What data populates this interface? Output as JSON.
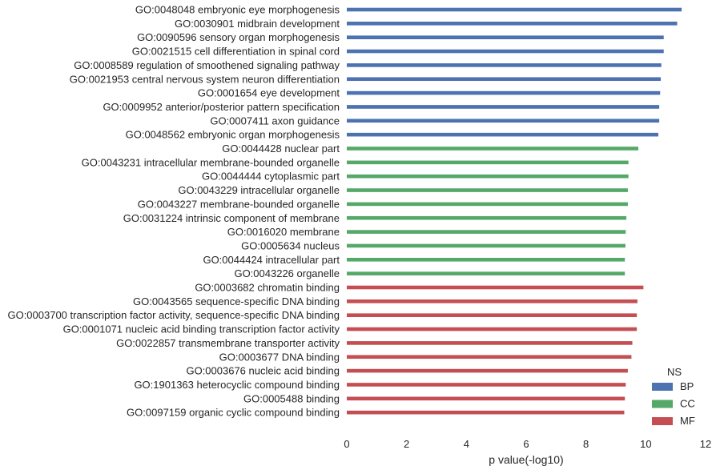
{
  "chart_data": {
    "type": "bar",
    "orientation": "horizontal",
    "xlabel": "p value(-log10)",
    "xlim": [
      0,
      12
    ],
    "xticks": [
      "0",
      "2",
      "4",
      "6",
      "8",
      "10",
      "12"
    ],
    "legend": {
      "title": "NS",
      "placement": "bottom-right",
      "entries": [
        {
          "name": "BP",
          "color": "#4c72b0"
        },
        {
          "name": "CC",
          "color": "#55a868"
        },
        {
          "name": "MF",
          "color": "#c44e52"
        }
      ]
    },
    "bars": [
      {
        "label": "GO:0048048 embryonic eye morphogenesis",
        "value": 11.2,
        "group": "BP"
      },
      {
        "label": "GO:0030901 midbrain development",
        "value": 11.05,
        "group": "BP"
      },
      {
        "label": "GO:0090596 sensory organ morphogenesis",
        "value": 10.6,
        "group": "BP"
      },
      {
        "label": "GO:0021515 cell differentiation in spinal cord",
        "value": 10.6,
        "group": "BP"
      },
      {
        "label": "GO:0008589 regulation of smoothened signaling pathway",
        "value": 10.52,
        "group": "BP"
      },
      {
        "label": "GO:0021953 central nervous system neuron differentiation",
        "value": 10.5,
        "group": "BP"
      },
      {
        "label": "GO:0001654 eye development",
        "value": 10.48,
        "group": "BP"
      },
      {
        "label": "GO:0009952 anterior/posterior pattern specification",
        "value": 10.45,
        "group": "BP"
      },
      {
        "label": "GO:0007411 axon guidance",
        "value": 10.45,
        "group": "BP"
      },
      {
        "label": "GO:0048562 embryonic organ morphogenesis",
        "value": 10.42,
        "group": "BP"
      },
      {
        "label": "GO:0044428 nuclear part",
        "value": 9.75,
        "group": "CC"
      },
      {
        "label": "GO:0043231 intracellular membrane-bounded organelle",
        "value": 9.42,
        "group": "CC"
      },
      {
        "label": "GO:0044444 cytoplasmic part",
        "value": 9.42,
        "group": "CC"
      },
      {
        "label": "GO:0043229 intracellular organelle",
        "value": 9.4,
        "group": "CC"
      },
      {
        "label": "GO:0043227 membrane-bounded organelle",
        "value": 9.4,
        "group": "CC"
      },
      {
        "label": "GO:0031224 intrinsic component of membrane",
        "value": 9.35,
        "group": "CC"
      },
      {
        "label": "GO:0016020 membrane",
        "value": 9.33,
        "group": "CC"
      },
      {
        "label": "GO:0005634 nucleus",
        "value": 9.32,
        "group": "CC"
      },
      {
        "label": "GO:0044424 intracellular part",
        "value": 9.3,
        "group": "CC"
      },
      {
        "label": "GO:0043226 organelle",
        "value": 9.3,
        "group": "CC"
      },
      {
        "label": "GO:0003682 chromatin binding",
        "value": 9.92,
        "group": "MF"
      },
      {
        "label": "GO:0043565 sequence-specific DNA binding",
        "value": 9.72,
        "group": "MF"
      },
      {
        "label": "GO:0003700 transcription factor activity, sequence-specific DNA binding",
        "value": 9.7,
        "group": "MF"
      },
      {
        "label": "GO:0001071 nucleic acid binding transcription factor activity",
        "value": 9.7,
        "group": "MF"
      },
      {
        "label": "GO:0022857 transmembrane transporter activity",
        "value": 9.55,
        "group": "MF"
      },
      {
        "label": "GO:0003677 DNA binding",
        "value": 9.52,
        "group": "MF"
      },
      {
        "label": "GO:0003676 nucleic acid binding",
        "value": 9.4,
        "group": "MF"
      },
      {
        "label": "GO:1901363 heterocyclic compound binding",
        "value": 9.33,
        "group": "MF"
      },
      {
        "label": "GO:0005488 binding",
        "value": 9.3,
        "group": "MF"
      },
      {
        "label": "GO:0097159 organic cyclic compound binding",
        "value": 9.28,
        "group": "MF"
      }
    ]
  }
}
